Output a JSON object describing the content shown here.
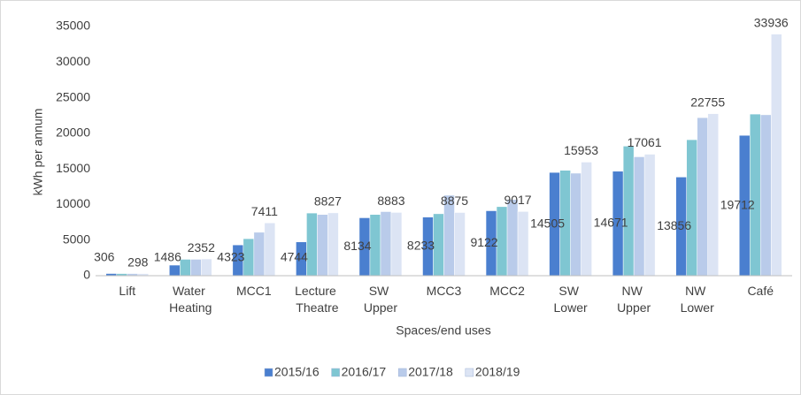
{
  "chart_data": {
    "type": "bar",
    "x_label": "Spaces/end uses",
    "y_label": "kWh per annum",
    "categories": [
      "Lift",
      "Water Heating",
      "MCC1",
      "Lecture Theatre",
      "SW Upper",
      "MCC3",
      "MCC2",
      "SW Lower",
      "NW Upper",
      "NW Lower",
      "Café"
    ],
    "series": [
      {
        "name": "2015/16",
        "color": "#4a7fcf",
        "data_labels": true,
        "values": [
          306,
          1486,
          4323,
          4744,
          8134,
          8233,
          9122,
          14505,
          14671,
          13856,
          19712
        ]
      },
      {
        "name": "2016/17",
        "color": "#7fc6d2",
        "data_labels": false,
        "values": [
          300,
          2300,
          5200,
          8800,
          8600,
          8700,
          9700,
          14800,
          18200,
          19100,
          22700
        ]
      },
      {
        "name": "2017/18",
        "color": "#b9cbea",
        "data_labels": false,
        "values": [
          300,
          2300,
          6100,
          8600,
          9000,
          11300,
          10700,
          14400,
          16700,
          22200,
          22600
        ]
      },
      {
        "name": "2018/19",
        "color": "#dce4f4",
        "data_labels": true,
        "values": [
          298,
          2352,
          7411,
          8827,
          8883,
          8875,
          9017,
          15953,
          17061,
          22755,
          33936
        ]
      }
    ],
    "ylim": [
      0,
      35000
    ],
    "yticks": [
      0,
      5000,
      10000,
      15000,
      20000,
      25000,
      30000,
      35000
    ],
    "grid": false,
    "legend": "bottom"
  }
}
